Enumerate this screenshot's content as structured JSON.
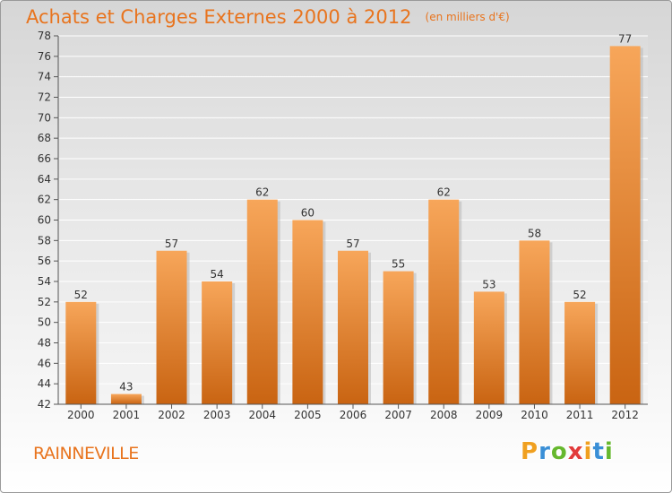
{
  "title": "Achats et Charges Externes 2000 à 2012",
  "unit": "(en milliers d'€)",
  "commune": "RAINNEVILLE",
  "logo": {
    "letters": [
      "P",
      "r",
      "o",
      "x",
      "i",
      "t",
      "i"
    ],
    "colors": [
      "#f0a020",
      "#3a8fd6",
      "#66b82e",
      "#e23b3b",
      "#f0a020",
      "#3a8fd6",
      "#66b82e"
    ]
  },
  "colors": {
    "accent": "#e8741e",
    "bar_top": "#f7a65a",
    "bar_bottom": "#c96412"
  },
  "chart_data": {
    "type": "bar",
    "title": "Achats et Charges Externes 2000 à 2012",
    "categories": [
      "2000",
      "2001",
      "2002",
      "2003",
      "2004",
      "2005",
      "2006",
      "2007",
      "2008",
      "2009",
      "2010",
      "2011",
      "2012"
    ],
    "values": [
      52,
      43,
      57,
      54,
      62,
      60,
      57,
      55,
      62,
      53,
      58,
      52,
      77
    ],
    "data_labels": [
      "52",
      "43",
      "57",
      "54",
      "62",
      "60",
      "57",
      "55",
      "62",
      "53",
      "58",
      "52",
      "77"
    ],
    "ylim": [
      42,
      78
    ],
    "yticks": [
      "42",
      "44",
      "46",
      "48",
      "50",
      "52",
      "54",
      "56",
      "58",
      "60",
      "62",
      "64",
      "66",
      "68",
      "70",
      "72",
      "74",
      "76",
      "78"
    ],
    "grid": true,
    "legend": "none"
  }
}
